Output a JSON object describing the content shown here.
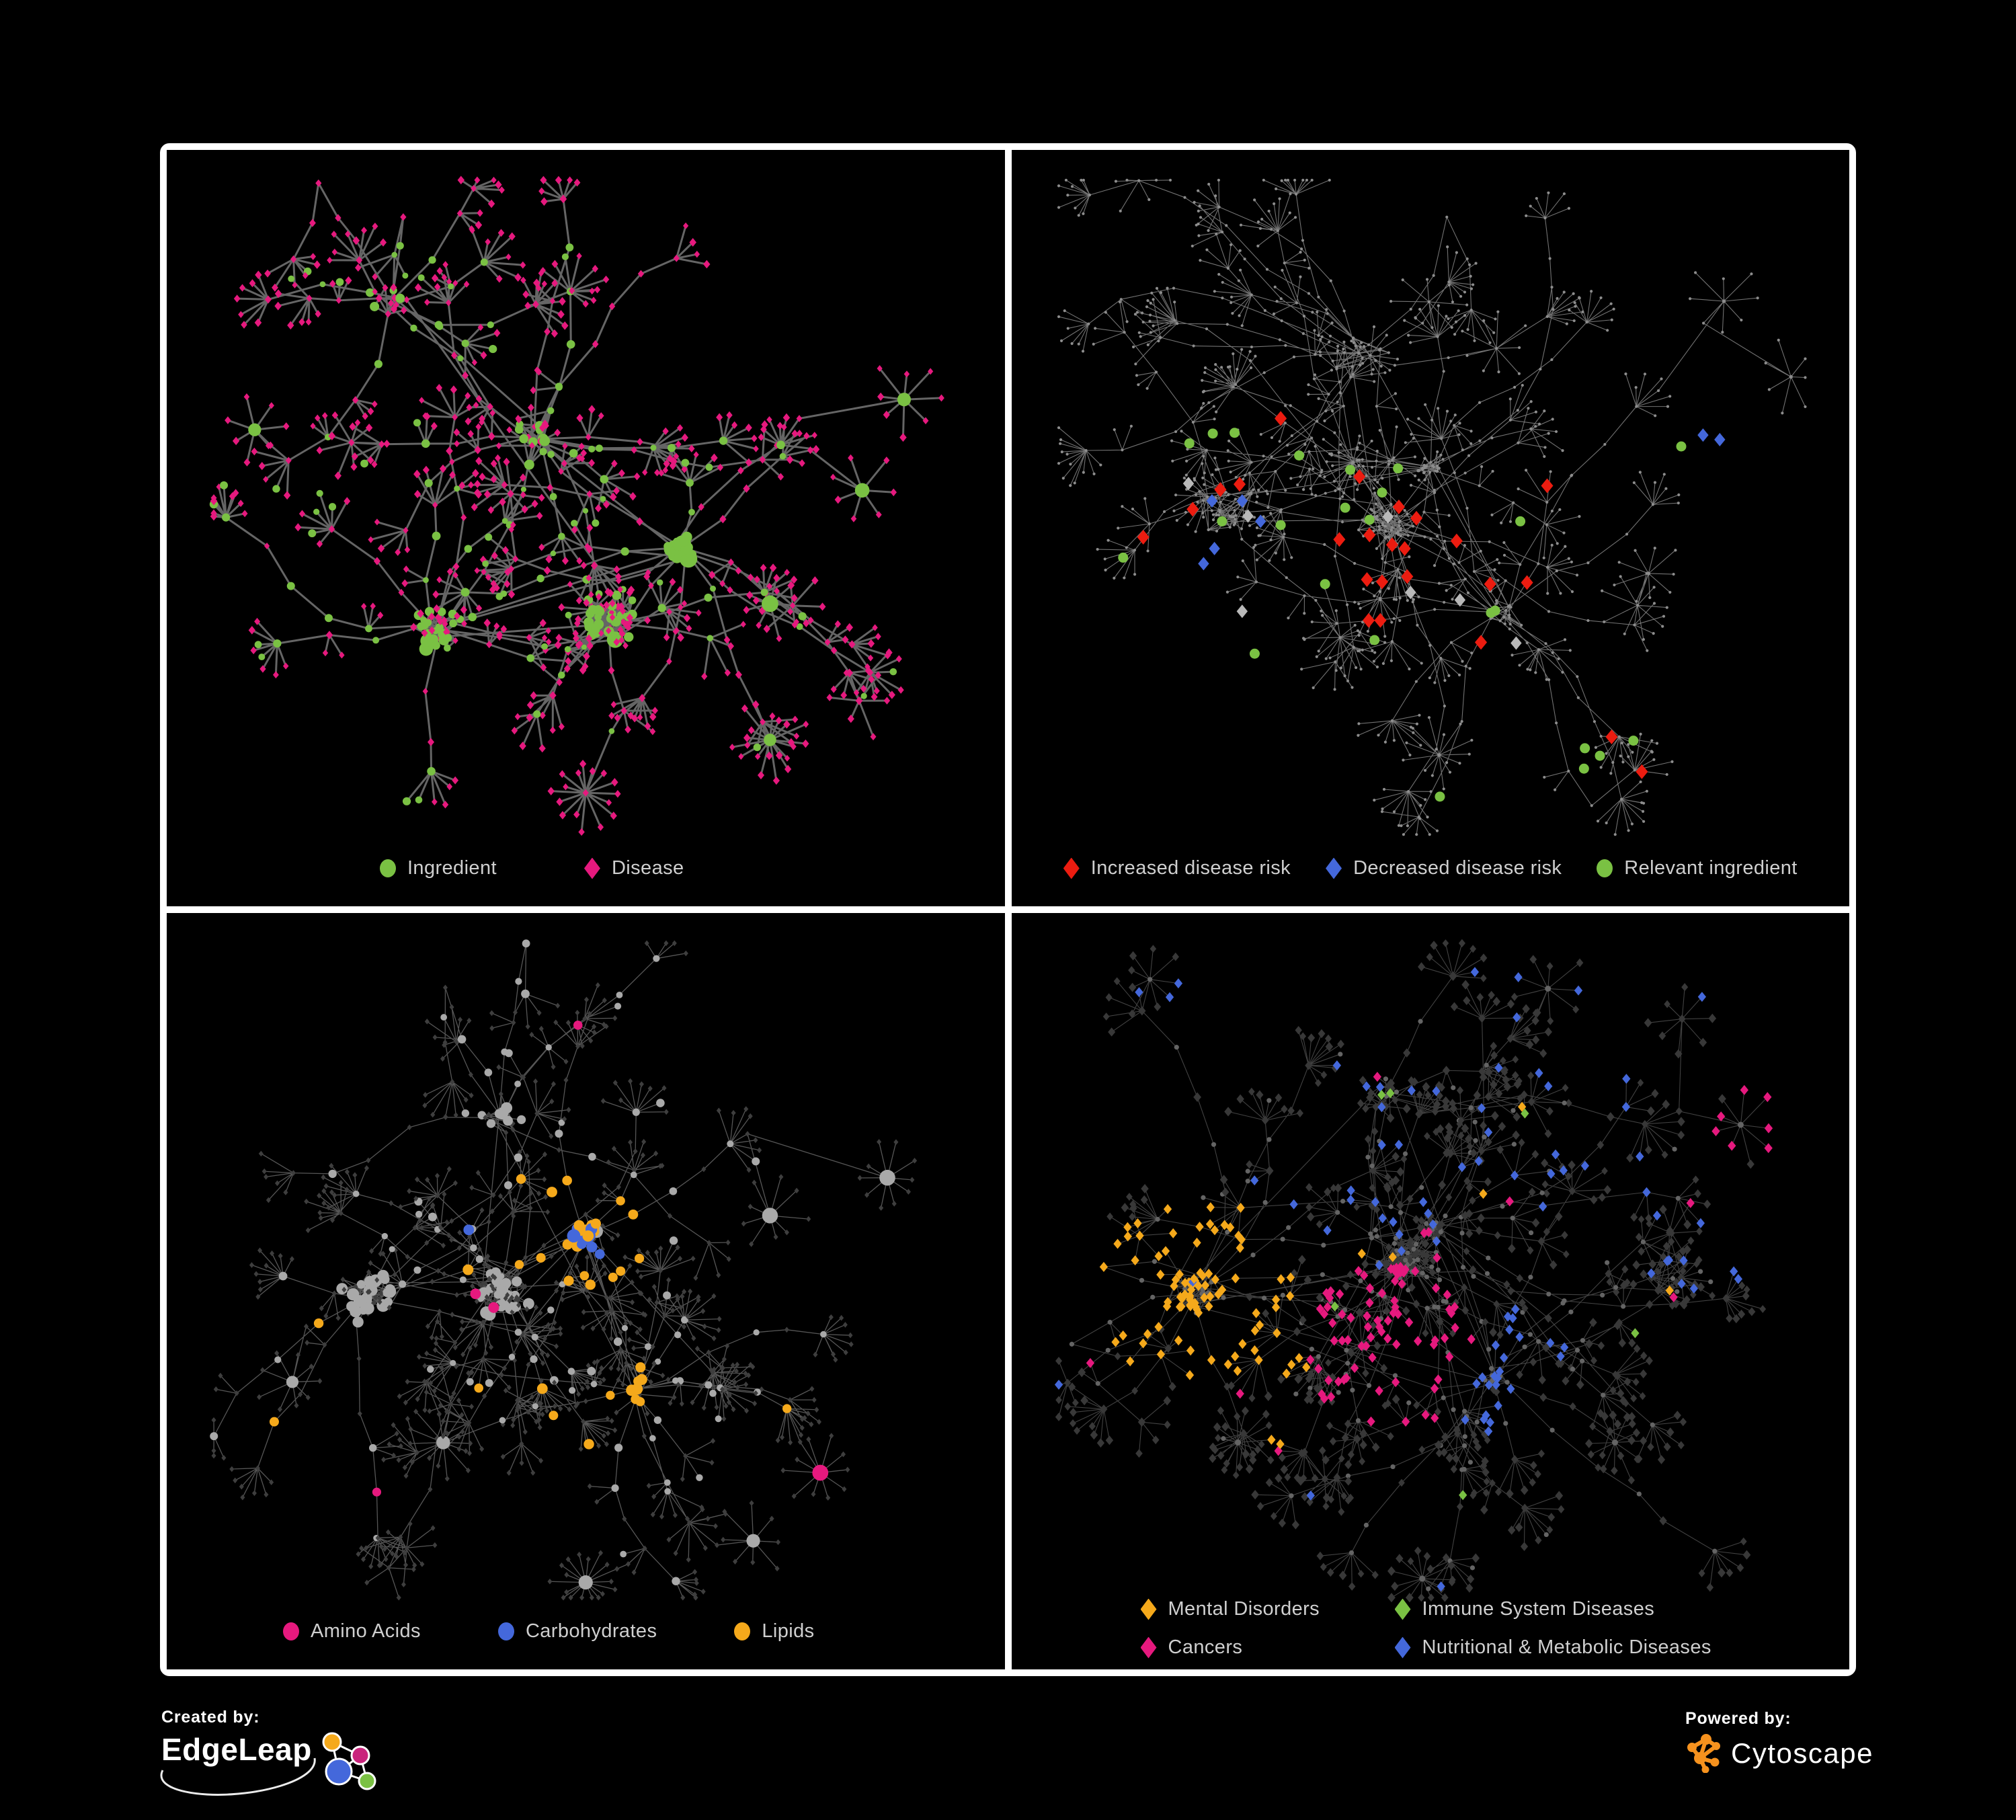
{
  "figure": {
    "background": "#000000",
    "frame_border_color": "#ffffff"
  },
  "chart_data": {
    "type": "network-figure",
    "description": "Four renderings of the same food ingredient / disease association network on black panels. Top-left: nodes typed as ingredients (green circles) vs diseases (pink diamonds). Top-right: same graph in gray with highlighted disease-risk associations. Bottom-left: ingredient chemical classes highlighted. Bottom-right: disease categories highlighted.",
    "legend_position": "bottom",
    "panels": [
      {
        "id": "ingredient-disease",
        "type": "network",
        "legend": [
          {
            "label": "Ingredient",
            "shape": "circle",
            "color": "#7AC143"
          },
          {
            "label": "Disease",
            "shape": "diamond",
            "color": "#E6197E"
          }
        ],
        "style": {
          "edge": {
            "color": "#6A6A6A",
            "width": 3.0,
            "opacity": 0.95
          },
          "mode": "kind",
          "ingredient": {
            "shape": "circle",
            "color": "#7AC143"
          },
          "disease": {
            "shape": "diamond",
            "color": "#E6197E"
          }
        },
        "topology": {
          "seed": 7,
          "cores": [
            {
              "x": 0.52,
              "y": 0.62,
              "n": 55,
              "s": 68,
              "ing": 0.5
            },
            {
              "x": 0.32,
              "y": 0.63,
              "n": 38,
              "s": 52,
              "ing": 0.6
            },
            {
              "x": 0.615,
              "y": 0.525,
              "n": 34,
              "s": 30,
              "ing": 0.92
            },
            {
              "x": 0.44,
              "y": 0.38,
              "n": 20,
              "s": 55,
              "ing": 0.5
            },
            {
              "x": 0.27,
              "y": 0.2,
              "n": 12,
              "s": 48,
              "ing": 0.35
            }
          ],
          "branches": 52,
          "segMin": 2,
          "segMax": 5,
          "lenMin": 42,
          "lenMax": 85,
          "burstMin": 4,
          "burstMax": 8,
          "stars": [
            [
              0.5,
              0.85,
              16
            ],
            [
              0.72,
              0.78,
              17
            ],
            [
              0.105,
              0.37,
              7
            ],
            [
              0.72,
              0.6,
              9
            ],
            [
              0.88,
              0.33,
              8
            ],
            [
              0.83,
              0.45,
              7
            ]
          ],
          "randomStars": 6
        },
        "regions": [],
        "highlights": []
      },
      {
        "id": "disease-risk",
        "type": "network",
        "legend": [
          {
            "label": "Increased disease risk",
            "shape": "diamond",
            "color": "#EC1C10"
          },
          {
            "label": "Decreased disease risk",
            "shape": "diamond",
            "color": "#4468DB"
          },
          {
            "label": "Relevant ingredient",
            "shape": "circle",
            "color": "#7AC143"
          }
        ],
        "style": {
          "edge": {
            "color": "#8E8E8E",
            "width": 1.1,
            "opacity": 0.8
          },
          "mode": "uniform",
          "base": {
            "shape": "circle",
            "color": "#8D8D8D",
            "r": 2.1
          }
        },
        "topology": {
          "seed": 13,
          "cores": [
            {
              "x": 0.45,
              "y": 0.5,
              "n": 46,
              "s": 62,
              "ing": 0.5
            },
            {
              "x": 0.26,
              "y": 0.48,
              "n": 34,
              "s": 55,
              "ing": 0.5
            },
            {
              "x": 0.5,
              "y": 0.42,
              "n": 26,
              "s": 32,
              "ing": 0.8
            },
            {
              "x": 0.585,
              "y": 0.615,
              "n": 18,
              "s": 35,
              "ing": 0.4
            },
            {
              "x": 0.42,
              "y": 0.27,
              "n": 16,
              "s": 50,
              "ing": 0.5
            }
          ],
          "branches": 62,
          "segMin": 2,
          "segMax": 6,
          "lenMin": 48,
          "lenMax": 95,
          "burstMin": 4,
          "burstMax": 10,
          "stars": [
            [
              0.51,
              0.8,
              13
            ],
            [
              0.85,
              0.2,
              8
            ],
            [
              0.76,
              0.56,
              9
            ],
            [
              0.93,
              0.3,
              7
            ]
          ],
          "randomStars": 8
        },
        "regions": [],
        "highlights": [
          {
            "color": "#EC1C10",
            "shape": "diamond",
            "r": 11,
            "pts": [
              [
                0.321,
                0.355
              ],
              [
                0.415,
                0.432
              ],
              [
                0.249,
                0.449
              ],
              [
                0.272,
                0.442
              ],
              [
                0.216,
                0.475
              ],
              [
                0.462,
                0.472
              ],
              [
                0.483,
                0.487
              ],
              [
                0.157,
                0.512
              ],
              [
                0.391,
                0.515
              ],
              [
                0.427,
                0.509
              ],
              [
                0.454,
                0.522
              ],
              [
                0.469,
                0.527
              ],
              [
                0.531,
                0.517
              ],
              [
                0.639,
                0.444
              ],
              [
                0.424,
                0.568
              ],
              [
                0.442,
                0.571
              ],
              [
                0.472,
                0.564
              ],
              [
                0.571,
                0.574
              ],
              [
                0.615,
                0.572
              ],
              [
                0.426,
                0.622
              ],
              [
                0.44,
                0.622
              ],
              [
                0.56,
                0.651
              ],
              [
                0.716,
                0.776
              ],
              [
                0.752,
                0.822
              ]
            ]
          },
          {
            "color": "#4468DB",
            "shape": "diamond",
            "r": 10,
            "pts": [
              [
                0.239,
                0.464
              ],
              [
                0.275,
                0.464
              ],
              [
                0.297,
                0.491
              ],
              [
                0.242,
                0.527
              ],
              [
                0.229,
                0.547
              ],
              [
                0.825,
                0.377
              ],
              [
                0.845,
                0.383
              ]
            ]
          },
          {
            "color": "#B9B9B9",
            "shape": "diamond",
            "r": 10,
            "pts": [
              [
                0.211,
                0.441
              ],
              [
                0.282,
                0.484
              ],
              [
                0.449,
                0.485
              ],
              [
                0.476,
                0.585
              ],
              [
                0.535,
                0.595
              ],
              [
                0.275,
                0.61
              ],
              [
                0.602,
                0.652
              ]
            ]
          },
          {
            "color": "#7AC143",
            "shape": "circle",
            "r": 7.5,
            "pts": [
              [
                0.212,
                0.388
              ],
              [
                0.24,
                0.375
              ],
              [
                0.266,
                0.374
              ],
              [
                0.343,
                0.404
              ],
              [
                0.404,
                0.423
              ],
              [
                0.461,
                0.421
              ],
              [
                0.442,
                0.453
              ],
              [
                0.398,
                0.473
              ],
              [
                0.251,
                0.491
              ],
              [
                0.321,
                0.496
              ],
              [
                0.427,
                0.489
              ],
              [
                0.133,
                0.539
              ],
              [
                0.374,
                0.574
              ],
              [
                0.433,
                0.648
              ],
              [
                0.29,
                0.666
              ],
              [
                0.607,
                0.491
              ],
              [
                0.577,
                0.609
              ],
              [
                0.572,
                0.612
              ],
              [
                0.799,
                0.392
              ],
              [
                0.684,
                0.791
              ],
              [
                0.702,
                0.801
              ],
              [
                0.742,
                0.781
              ],
              [
                0.511,
                0.855
              ],
              [
                0.683,
                0.818
              ]
            ]
          }
        ]
      },
      {
        "id": "ingredient-classes",
        "type": "network",
        "legend": [
          {
            "label": "Amino Acids",
            "shape": "circle",
            "color": "#E6197E"
          },
          {
            "label": "Carbohydrates",
            "shape": "circle",
            "color": "#4468DB"
          },
          {
            "label": "Lipids",
            "shape": "circle",
            "color": "#F5A91B"
          }
        ],
        "style": {
          "edge": {
            "color": "#ABABAB",
            "width": 1.3,
            "opacity": 0.5
          },
          "mode": "kind",
          "ingredient": {
            "shape": "circle",
            "color": "#A9A9A9"
          },
          "disease": {
            "shape": "diamond",
            "color": "#3E3E3E"
          }
        },
        "topology": {
          "seed": 21,
          "cores": [
            {
              "x": 0.24,
              "y": 0.51,
              "n": 40,
              "s": 58,
              "ing": 0.6
            },
            {
              "x": 0.4,
              "y": 0.5,
              "n": 50,
              "s": 60,
              "ing": 0.55
            },
            {
              "x": 0.5,
              "y": 0.425,
              "n": 30,
              "s": 30,
              "ing": 0.9
            },
            {
              "x": 0.56,
              "y": 0.63,
              "n": 16,
              "s": 30,
              "ing": 0.5
            },
            {
              "x": 0.4,
              "y": 0.27,
              "n": 16,
              "s": 52,
              "ing": 0.5
            }
          ],
          "branches": 56,
          "segMin": 2,
          "segMax": 5,
          "lenMin": 45,
          "lenMax": 85,
          "burstMin": 4,
          "burstMax": 10,
          "stars": [
            [
              0.5,
              0.885,
              18
            ],
            [
              0.33,
              0.7,
              14
            ],
            [
              0.15,
              0.62,
              9
            ],
            [
              0.72,
              0.4,
              9
            ],
            [
              0.86,
              0.35,
              10
            ],
            [
              0.78,
              0.74,
              10
            ],
            [
              0.7,
              0.83,
              8
            ]
          ],
          "randomStars": 7
        },
        "regions": [
          {
            "apply": "I",
            "cx": 0.5,
            "cy": 0.425,
            "rad": 0.055,
            "p": 0.3,
            "color": "#4468DB"
          },
          {
            "apply": "I",
            "cx": 0.5,
            "cy": 0.42,
            "rad": 0.08,
            "p": 0.88,
            "color": "#F5A91B"
          },
          {
            "apply": "I",
            "cx": 0.56,
            "cy": 0.63,
            "rad": 0.035,
            "p": 0.9,
            "color": "#F5A91B"
          },
          {
            "apply": "I",
            "cx": 0.5,
            "cy": 0.5,
            "rad": 9,
            "p": 0.05,
            "color": "#F5A91B"
          },
          {
            "apply": "I",
            "cx": 0.5,
            "cy": 0.5,
            "rad": 9,
            "p": 0.045,
            "color": "#E6197E"
          },
          {
            "apply": "I",
            "cx": 0.5,
            "cy": 0.5,
            "rad": 9,
            "p": 0.012,
            "color": "#4468DB"
          }
        ],
        "highlights": []
      },
      {
        "id": "disease-categories",
        "type": "network",
        "legend": [
          {
            "label": "Mental Disorders",
            "shape": "diamond",
            "color": "#F5A91B"
          },
          {
            "label": "Immune System Diseases",
            "shape": "diamond",
            "color": "#7AC143"
          },
          {
            "label": "Cancers",
            "shape": "diamond",
            "color": "#E6197E"
          },
          {
            "label": "Nutritional & Metabolic Diseases",
            "shape": "diamond",
            "color": "#4468DB"
          }
        ],
        "style": {
          "edge": {
            "color": "#9E9E9E",
            "width": 1.1,
            "opacity": 0.42
          },
          "mode": "kind",
          "ingredient": {
            "shape": "circle",
            "color": "#646464"
          },
          "disease": {
            "shape": "diamond",
            "color": "#383838"
          }
        },
        "topology": {
          "seed": 29,
          "cores": [
            {
              "x": 0.22,
              "y": 0.5,
              "n": 46,
              "s": 55,
              "ing": 0.3
            },
            {
              "x": 0.47,
              "y": 0.46,
              "n": 55,
              "s": 62,
              "ing": 0.4
            },
            {
              "x": 0.5,
              "y": 0.415,
              "n": 26,
              "s": 28,
              "ing": 0.5
            },
            {
              "x": 0.575,
              "y": 0.62,
              "n": 18,
              "s": 32,
              "ing": 0.3
            },
            {
              "x": 0.44,
              "y": 0.24,
              "n": 18,
              "s": 55,
              "ing": 0.4
            }
          ],
          "branches": 66,
          "segMin": 2,
          "segMax": 6,
          "lenMin": 45,
          "lenMax": 90,
          "burstMin": 4,
          "burstMax": 10,
          "stars": [
            [
              0.49,
              0.88,
              15
            ],
            [
              0.27,
              0.7,
              15
            ],
            [
              0.72,
              0.7,
              12
            ],
            [
              0.87,
              0.28,
              9
            ],
            [
              0.8,
              0.14,
              8
            ],
            [
              0.64,
              0.1,
              9
            ]
          ],
          "randomStars": 8
        },
        "regions": [
          {
            "apply": "D",
            "cx": 0.22,
            "cy": 0.5,
            "rad": 0.115,
            "p": 0.93,
            "color": "#F5A91B"
          },
          {
            "apply": "D",
            "cx": 0.31,
            "cy": 0.57,
            "rad": 0.05,
            "p": 0.45,
            "color": "#F5A91B"
          },
          {
            "apply": "D",
            "cx": 0.45,
            "cy": 0.575,
            "rad": 0.1,
            "p": 0.6,
            "color": "#E6197E"
          },
          {
            "apply": "D",
            "cx": 0.89,
            "cy": 0.285,
            "rad": 0.05,
            "p": 0.8,
            "color": "#E6197E"
          },
          {
            "apply": "D",
            "cx": 0.575,
            "cy": 0.625,
            "rad": 0.055,
            "p": 0.8,
            "color": "#4468DB"
          },
          {
            "apply": "D",
            "cx": 0.635,
            "cy": 0.545,
            "rad": 0.045,
            "p": 0.7,
            "color": "#4468DB"
          },
          {
            "apply": "D",
            "cx": 0.48,
            "cy": 0.13,
            "rad": 0.3,
            "p": 0.13,
            "color": "#4468DB"
          },
          {
            "apply": "D",
            "cx": 0.81,
            "cy": 0.35,
            "rad": 0.14,
            "p": 0.2,
            "color": "#4468DB"
          },
          {
            "apply": "D",
            "cx": 0.5,
            "cy": 0.5,
            "rad": 9,
            "p": 0.03,
            "color": "#4468DB"
          },
          {
            "apply": "D",
            "cx": 0.5,
            "cy": 0.5,
            "rad": 9,
            "p": 0.016,
            "color": "#E6197E"
          },
          {
            "apply": "D",
            "cx": 0.5,
            "cy": 0.5,
            "rad": 9,
            "p": 0.012,
            "color": "#F5A91B"
          },
          {
            "apply": "D",
            "cx": 0.5,
            "cy": 0.5,
            "rad": 9,
            "p": 0.01,
            "color": "#7AC143"
          }
        ],
        "highlights": []
      }
    ]
  },
  "footer": {
    "created_by_label": "Created by:",
    "edgeleap_name": "EdgeLeap",
    "powered_by_label": "Powered by:",
    "cytoscape_name": "Cytoscape",
    "edgeleap_logo_colors": {
      "orange": "#F5A91B",
      "pink": "#C9247C",
      "blue": "#4468DB",
      "green": "#7AC143"
    },
    "cytoscape_logo_color": "#F6921E"
  }
}
